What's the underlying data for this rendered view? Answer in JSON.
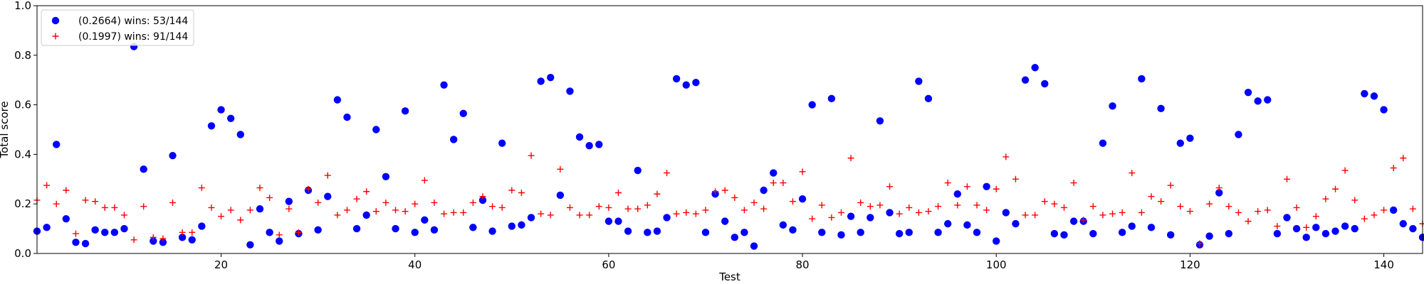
{
  "chart_data": {
    "type": "scatter",
    "title": "",
    "xlabel": "Test",
    "ylabel": "Total score",
    "xlim": [
      1,
      144
    ],
    "ylim": [
      0.0,
      1.0
    ],
    "xticks": [
      20,
      40,
      60,
      80,
      100,
      120,
      140
    ],
    "xtick_labels": [
      "20",
      "40",
      "60",
      "80",
      "100",
      "120",
      "140"
    ],
    "yticks": [
      0.0,
      0.2,
      0.4,
      0.6,
      0.8,
      1.0
    ],
    "ytick_labels": [
      "0.0",
      "0.2",
      "0.4",
      "0.6",
      "0.8",
      "1.0"
    ],
    "grid": false,
    "legend": "top-left",
    "series": [
      {
        "name": "(0.2664) wins: 53/144",
        "marker": "circle",
        "color": "#0000ff",
        "x": [
          1,
          2,
          3,
          4,
          5,
          6,
          7,
          8,
          9,
          10,
          11,
          12,
          13,
          14,
          15,
          16,
          17,
          18,
          19,
          20,
          21,
          22,
          23,
          24,
          25,
          26,
          27,
          28,
          29,
          30,
          31,
          32,
          33,
          34,
          35,
          36,
          37,
          38,
          39,
          40,
          41,
          42,
          43,
          44,
          45,
          46,
          47,
          48,
          49,
          50,
          51,
          52,
          53,
          54,
          55,
          56,
          57,
          58,
          59,
          60,
          61,
          62,
          63,
          64,
          65,
          66,
          67,
          68,
          69,
          70,
          71,
          72,
          73,
          74,
          75,
          76,
          77,
          78,
          79,
          80,
          81,
          82,
          83,
          84,
          85,
          86,
          87,
          88,
          89,
          90,
          91,
          92,
          93,
          94,
          95,
          96,
          97,
          98,
          99,
          100,
          101,
          102,
          103,
          104,
          105,
          106,
          107,
          108,
          109,
          110,
          111,
          112,
          113,
          114,
          115,
          116,
          117,
          118,
          119,
          120,
          121,
          122,
          123,
          124,
          125,
          126,
          127,
          128,
          129,
          130,
          131,
          132,
          133,
          134,
          135,
          136,
          137,
          138,
          139,
          140,
          141,
          142,
          143,
          144
        ],
        "y": [
          0.09,
          0.105,
          0.44,
          0.14,
          0.045,
          0.04,
          0.095,
          0.085,
          0.085,
          0.1,
          0.835,
          0.34,
          0.05,
          0.045,
          0.395,
          0.065,
          0.055,
          0.11,
          0.515,
          0.58,
          0.545,
          0.48,
          0.035,
          0.18,
          0.085,
          0.05,
          0.21,
          0.08,
          0.255,
          0.095,
          0.23,
          0.62,
          0.55,
          0.1,
          0.155,
          0.5,
          0.31,
          0.1,
          0.575,
          0.085,
          0.135,
          0.095,
          0.68,
          0.46,
          0.565,
          0.105,
          0.215,
          0.09,
          0.445,
          0.11,
          0.115,
          0.145,
          0.695,
          0.71,
          0.235,
          0.655,
          0.47,
          0.435,
          0.44,
          0.13,
          0.13,
          0.09,
          0.335,
          0.085,
          0.09,
          0.145,
          0.705,
          0.68,
          0.69,
          0.085,
          0.24,
          0.13,
          0.065,
          0.085,
          0.03,
          0.255,
          0.325,
          0.115,
          0.095,
          0.22,
          0.6,
          0.085,
          0.625,
          0.075,
          0.15,
          0.085,
          0.145,
          0.535,
          0.165,
          0.08,
          0.085,
          0.695,
          0.625,
          0.085,
          0.12,
          0.24,
          0.115,
          0.085,
          0.27,
          0.05,
          0.165,
          0.12,
          0.7,
          0.75,
          0.685,
          0.08,
          0.075,
          0.13,
          0.13,
          0.08,
          0.445,
          0.595,
          0.085,
          0.11,
          0.705,
          0.105,
          0.585,
          0.075,
          0.445,
          0.465,
          0.035,
          0.07,
          0.245,
          0.08,
          0.48,
          0.65,
          0.615,
          0.62,
          0.08,
          0.145,
          0.1,
          0.065,
          0.105,
          0.08,
          0.09,
          0.11,
          0.1,
          0.645,
          0.635,
          0.58,
          0.175,
          0.12,
          0.1,
          0.065
        ]
      },
      {
        "name": "(0.1997) wins: 91/144",
        "marker": "plus",
        "color": "#ff0000",
        "x": [
          1,
          2,
          3,
          4,
          5,
          6,
          7,
          8,
          9,
          10,
          11,
          12,
          13,
          14,
          15,
          16,
          17,
          18,
          19,
          20,
          21,
          22,
          23,
          24,
          25,
          26,
          27,
          28,
          29,
          30,
          31,
          32,
          33,
          34,
          35,
          36,
          37,
          38,
          39,
          40,
          41,
          42,
          43,
          44,
          45,
          46,
          47,
          48,
          49,
          50,
          51,
          52,
          53,
          54,
          55,
          56,
          57,
          58,
          59,
          60,
          61,
          62,
          63,
          64,
          65,
          66,
          67,
          68,
          69,
          70,
          71,
          72,
          73,
          74,
          75,
          76,
          77,
          78,
          79,
          80,
          81,
          82,
          83,
          84,
          85,
          86,
          87,
          88,
          89,
          90,
          91,
          92,
          93,
          94,
          95,
          96,
          97,
          98,
          99,
          100,
          101,
          102,
          103,
          104,
          105,
          106,
          107,
          108,
          109,
          110,
          111,
          112,
          113,
          114,
          115,
          116,
          117,
          118,
          119,
          120,
          121,
          122,
          123,
          124,
          125,
          126,
          127,
          128,
          129,
          130,
          131,
          132,
          133,
          134,
          135,
          136,
          137,
          138,
          139,
          140,
          141,
          142,
          143,
          144
        ],
        "y": [
          0.215,
          0.275,
          0.2,
          0.255,
          0.08,
          0.215,
          0.21,
          0.185,
          0.185,
          0.155,
          0.055,
          0.19,
          0.065,
          0.06,
          0.205,
          0.085,
          0.085,
          0.265,
          0.185,
          0.15,
          0.175,
          0.135,
          0.175,
          0.265,
          0.225,
          0.075,
          0.18,
          0.085,
          0.26,
          0.205,
          0.315,
          0.155,
          0.175,
          0.22,
          0.25,
          0.17,
          0.205,
          0.175,
          0.17,
          0.2,
          0.295,
          0.205,
          0.16,
          0.165,
          0.165,
          0.205,
          0.23,
          0.19,
          0.185,
          0.255,
          0.245,
          0.395,
          0.16,
          0.155,
          0.34,
          0.185,
          0.155,
          0.155,
          0.19,
          0.185,
          0.245,
          0.18,
          0.18,
          0.195,
          0.24,
          0.325,
          0.16,
          0.165,
          0.16,
          0.175,
          0.25,
          0.255,
          0.225,
          0.175,
          0.205,
          0.18,
          0.285,
          0.285,
          0.21,
          0.33,
          0.14,
          0.195,
          0.145,
          0.165,
          0.385,
          0.205,
          0.19,
          0.195,
          0.27,
          0.16,
          0.185,
          0.165,
          0.17,
          0.19,
          0.285,
          0.195,
          0.27,
          0.195,
          0.175,
          0.26,
          0.39,
          0.3,
          0.155,
          0.155,
          0.21,
          0.2,
          0.185,
          0.285,
          0.135,
          0.19,
          0.155,
          0.16,
          0.165,
          0.325,
          0.165,
          0.23,
          0.21,
          0.275,
          0.19,
          0.17,
          0.04,
          0.2,
          0.265,
          0.19,
          0.165,
          0.13,
          0.17,
          0.175,
          0.11,
          0.3,
          0.185,
          0.105,
          0.15,
          0.22,
          0.26,
          0.335,
          0.215,
          0.14,
          0.155,
          0.175,
          0.345,
          0.385,
          0.18,
          0.12
        ]
      }
    ]
  }
}
